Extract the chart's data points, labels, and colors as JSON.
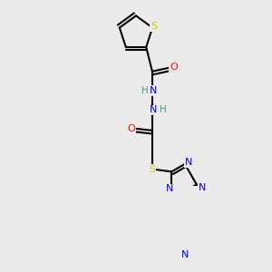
{
  "background_color": "#ebebeb",
  "bond_color": "#000000",
  "atom_colors": {
    "S": "#cccc00",
    "O": "#ff0000",
    "N": "#0000ff",
    "H": "#4a9090",
    "C": "#000000"
  },
  "figsize": [
    3.0,
    3.0
  ],
  "dpi": 100
}
